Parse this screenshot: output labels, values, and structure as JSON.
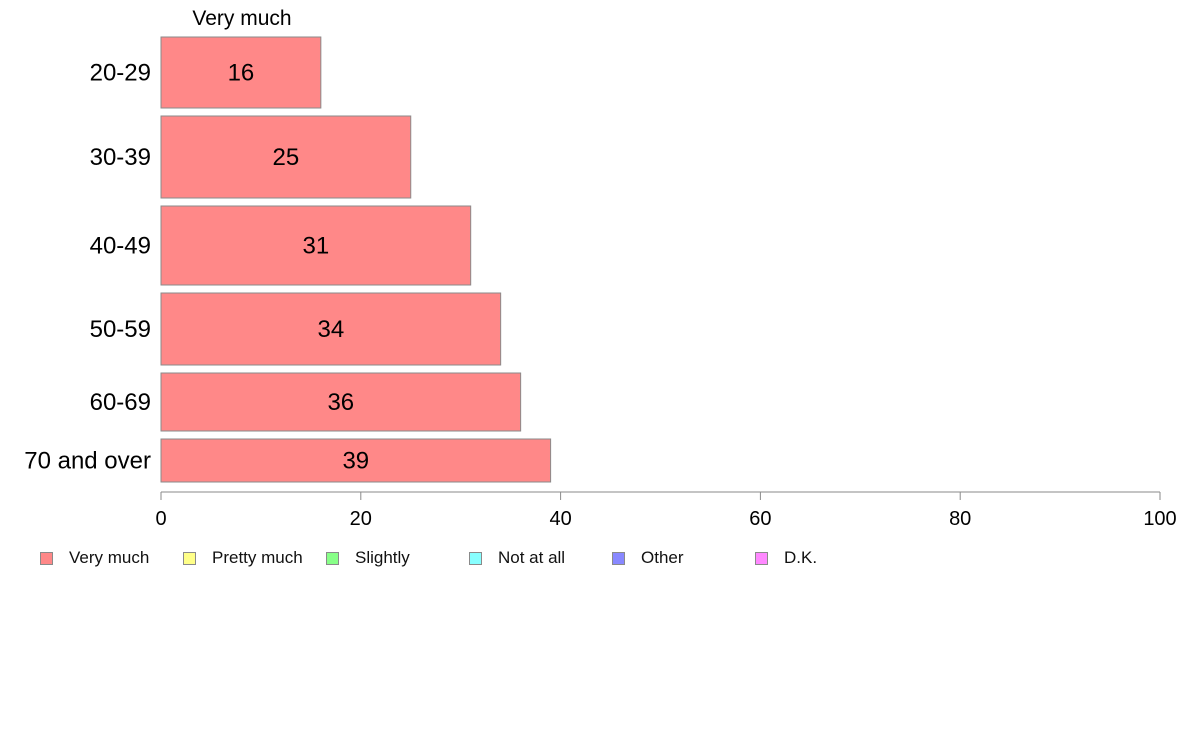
{
  "chart_data": {
    "type": "bar",
    "orientation": "horizontal",
    "series_label": "Very much",
    "categories": [
      "20-29",
      "30-39",
      "40-49",
      "50-59",
      "60-69",
      "70 and over"
    ],
    "series": [
      {
        "name": "Very much",
        "values": [
          16,
          25,
          31,
          34,
          36,
          39
        ]
      }
    ],
    "data_labels": [
      "16",
      "25",
      "31",
      "34",
      "36",
      "39"
    ],
    "xlim": [
      0,
      100
    ],
    "x_ticks": [
      0,
      20,
      40,
      60,
      80,
      100
    ],
    "x_tick_labels": [
      "0",
      "20",
      "40",
      "60",
      "80",
      "100"
    ],
    "title": "",
    "xlabel": "",
    "ylabel": "",
    "grid": false,
    "legend": {
      "placement": "bottom",
      "entries": [
        {
          "label": "Very much",
          "color": "#ff8888"
        },
        {
          "label": "Pretty much",
          "color": "#ffff88"
        },
        {
          "label": "Slightly",
          "color": "#88ff88"
        },
        {
          "label": "Not at all",
          "color": "#88ffff"
        },
        {
          "label": "Other",
          "color": "#8888ff"
        },
        {
          "label": "D.K.",
          "color": "#ff88ff"
        }
      ]
    },
    "bar_color": "#ff8888",
    "bar_edge_color": "#8a8a8a"
  }
}
